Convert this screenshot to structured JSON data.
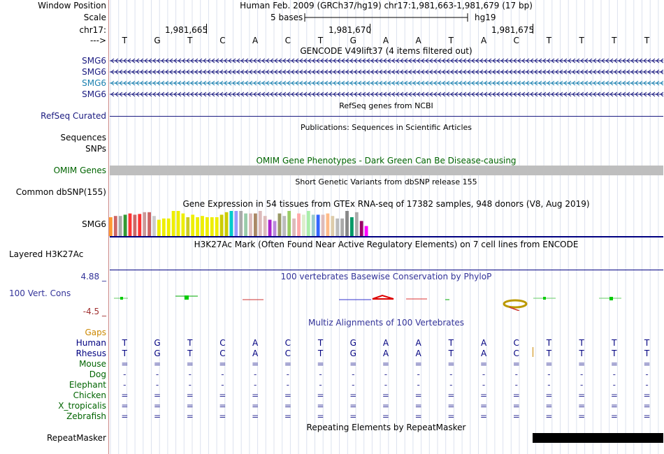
{
  "header": {
    "window_position_label": "Window Position",
    "scale_label": "Scale",
    "chrom_label": "chr17:",
    "arrow_label": "--->",
    "window_text": "Human Feb. 2009 (GRCh37/hg19)   chr17:1,981,663-1,981,679 (17 bp)",
    "scale_text": "5 bases",
    "assembly_text": "hg19",
    "positions": [
      "1,981,665",
      "1,981,670",
      "1,981,675"
    ]
  },
  "sequence": [
    "T",
    "G",
    "T",
    "C",
    "A",
    "C",
    "T",
    "G",
    "A",
    "A",
    "T",
    "A",
    "C",
    "T",
    "T",
    "T",
    "T"
  ],
  "gencode": {
    "title": "GENCODE V49lift37 (4 items filtered out)",
    "items": [
      {
        "label": "SMG6",
        "color": "#1a1a80"
      },
      {
        "label": "SMG6",
        "color": "#1a1a80"
      },
      {
        "label": "SMG6",
        "color": "#1a80b0"
      },
      {
        "label": "SMG6",
        "color": "#1a1a80"
      }
    ]
  },
  "refseq": {
    "title": "RefSeq genes from NCBI",
    "label": "RefSeq Curated"
  },
  "publications": {
    "title": "Publications: Sequences in Scientific Articles",
    "label1": "Sequences",
    "label2": "SNPs"
  },
  "omim": {
    "title": "OMIM Gene Phenotypes - Dark Green Can Be Disease-causing",
    "label": "OMIM Genes"
  },
  "dbsnp": {
    "title": "Short Genetic Variants from dbSNP release 155",
    "label": "Common dbSNP(155)"
  },
  "gtex": {
    "title": "Gene Expression in 54 tissues from GTEx RNA-seq of 17382 samples, 948 donors (V8, Aug 2019)",
    "label": "SMG6",
    "levels": [
      0.75,
      0.8,
      0.8,
      0.85,
      0.9,
      0.85,
      0.88,
      0.95,
      0.95,
      0.8,
      0.65,
      0.7,
      0.7,
      1.0,
      1.0,
      0.9,
      0.75,
      0.85,
      0.75,
      0.8,
      0.75,
      0.75,
      0.75,
      0.85,
      0.95,
      1.0,
      1.0,
      1.0,
      0.9,
      0.9,
      0.9,
      1.0,
      0.8,
      0.65,
      0.6,
      0.9,
      0.8,
      1.0,
      0.7,
      0.9,
      0.85,
      1.0,
      0.85,
      0.85,
      0.85,
      0.9,
      0.8,
      0.7,
      0.7,
      1.0,
      0.75,
      0.95,
      0.6,
      0.4
    ],
    "colors": [
      "#ff9933",
      "#cc6666",
      "#aaaaaa",
      "#339933",
      "#ff3333",
      "#cc6666",
      "#ff3333",
      "#cc9999",
      "#cc6666",
      "#cccccc",
      "#eeee00",
      "#eeee00",
      "#eeee00",
      "#eeee00",
      "#eeee00",
      "#eeee00",
      "#cccc22",
      "#eeee00",
      "#eeee00",
      "#eeee00",
      "#eeee00",
      "#eeee00",
      "#eeee00",
      "#cccc00",
      "#cccc00",
      "#00cccc",
      "#9999ff",
      "#aaaaaa",
      "#99ccaa",
      "#ddbbbb",
      "#aa8866",
      "#ddbbbb",
      "#ddbbbb",
      "#aa22cc",
      "#bb88dd",
      "#999966",
      "#bbbbbb",
      "#99cc66",
      "#ddbbbb",
      "#ffaaaa",
      "#ddeecc",
      "#aaeeaa",
      "#99cccc",
      "#3366ff",
      "#ddbbbb",
      "#ffbb88",
      "#ddccaa",
      "#bbbbbb",
      "#aaaaaa",
      "#888888",
      "#009966",
      "#aaaaaa",
      "#990066",
      "#ff00ff"
    ]
  },
  "h3k27ac": {
    "title": "H3K27Ac Mark (Often Found Near Active Regulatory Elements) on 7 cell lines from ENCODE",
    "label": "Layered H3K27Ac"
  },
  "phylop": {
    "title": "100 vertebrates Basewise Conservation by PhyloP",
    "label": "100 Vert. Cons",
    "max": "4.88 _",
    "min": "-4.5 _"
  },
  "multiz": {
    "title": "Multiz Alignments of 100 Vertebrates",
    "gaps_label": "Gaps",
    "species": [
      {
        "name": "Human",
        "color": "#000080",
        "row": [
          "T",
          "G",
          "T",
          "C",
          "A",
          "C",
          "T",
          "G",
          "A",
          "A",
          "T",
          "A",
          "C",
          "T",
          "T",
          "T",
          "T"
        ]
      },
      {
        "name": "Rhesus",
        "color": "#000080",
        "row": [
          "T",
          "G",
          "T",
          "C",
          "A",
          "C",
          "T",
          "G",
          "A",
          "A",
          "T",
          "A",
          "C",
          "T",
          "T",
          "T",
          "T"
        ]
      },
      {
        "name": "Mouse",
        "color": "#006400",
        "row": [
          "=",
          "=",
          "=",
          "=",
          "=",
          "=",
          "=",
          "=",
          "=",
          "=",
          "=",
          "=",
          "=",
          "=",
          "=",
          "=",
          "="
        ]
      },
      {
        "name": "Dog",
        "color": "#006400",
        "row": [
          "-",
          "-",
          "-",
          "-",
          "-",
          "-",
          "-",
          "-",
          "-",
          "-",
          "-",
          "-",
          "-",
          "-",
          "-",
          "-",
          "-"
        ]
      },
      {
        "name": "Elephant",
        "color": "#006400",
        "row": [
          "-",
          "-",
          "-",
          "-",
          "-",
          "-",
          "-",
          "-",
          "-",
          "-",
          "-",
          "-",
          "-",
          "-",
          "-",
          "-",
          "-"
        ]
      },
      {
        "name": "Chicken",
        "color": "#006400",
        "row": [
          "=",
          "=",
          "=",
          "=",
          "=",
          "=",
          "=",
          "=",
          "=",
          "=",
          "=",
          "=",
          "=",
          "=",
          "=",
          "=",
          "="
        ]
      },
      {
        "name": "X_tropicalis",
        "color": "#006400",
        "row": [
          "=",
          "=",
          "=",
          "=",
          "=",
          "=",
          "=",
          "=",
          "=",
          "=",
          "=",
          "=",
          "=",
          "=",
          "=",
          "=",
          "="
        ]
      },
      {
        "name": "Zebrafish",
        "color": "#006400",
        "row": [
          "=",
          "=",
          "=",
          "=",
          "=",
          "=",
          "=",
          "=",
          "=",
          "=",
          "=",
          "=",
          "=",
          "=",
          "=",
          "=",
          "="
        ]
      }
    ]
  },
  "repeatmasker": {
    "title": "Repeating Elements by RepeatMasker",
    "label": "RepeatMasker"
  },
  "colors": {
    "navy": "#000080",
    "omim_green": "#006400",
    "phylop_blue": "#333399",
    "gaps_orange": "#cc8800",
    "min_red": "#a03030"
  }
}
